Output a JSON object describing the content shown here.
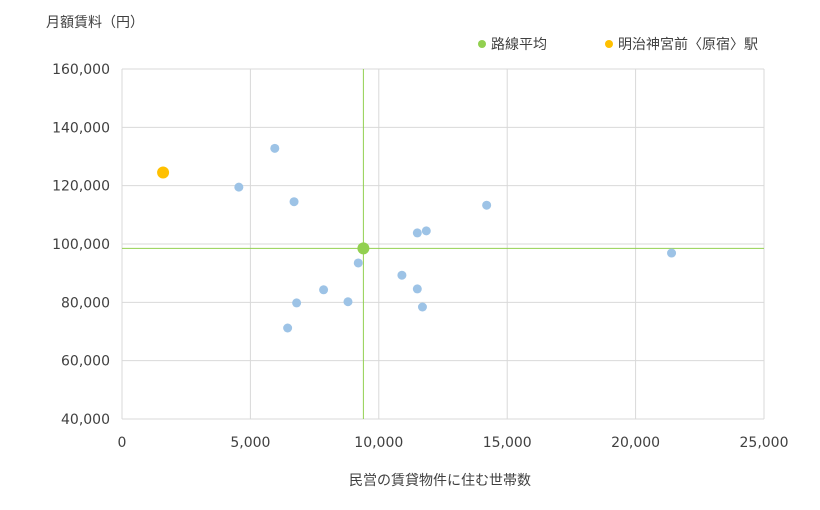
{
  "chart_data": {
    "type": "scatter",
    "title": "",
    "ylabel": "月額賃料（円）",
    "xlabel": "民営の賃貸物件に住む世帯数",
    "xlim": [
      0,
      25000
    ],
    "ylim": [
      40000,
      160000
    ],
    "xticks": [
      "0",
      "5,000",
      "10,000",
      "15,000",
      "20,000",
      "25,000"
    ],
    "yticks": [
      "40,000",
      "60,000",
      "80,000",
      "100,000",
      "120,000",
      "140,000",
      "160,000"
    ],
    "grid": true,
    "legend_position": "top-right",
    "series": [
      {
        "name": "",
        "color": "#9DC3E6",
        "points": [
          {
            "x": 4550,
            "y": 119500
          },
          {
            "x": 5950,
            "y": 132800
          },
          {
            "x": 6700,
            "y": 114500
          },
          {
            "x": 6450,
            "y": 71200
          },
          {
            "x": 6800,
            "y": 79800
          },
          {
            "x": 7850,
            "y": 84300
          },
          {
            "x": 8800,
            "y": 80200
          },
          {
            "x": 9200,
            "y": 93500
          },
          {
            "x": 10900,
            "y": 89300
          },
          {
            "x": 11500,
            "y": 84600
          },
          {
            "x": 11700,
            "y": 78400
          },
          {
            "x": 11500,
            "y": 103800
          },
          {
            "x": 11850,
            "y": 104500
          },
          {
            "x": 14200,
            "y": 113300
          },
          {
            "x": 21400,
            "y": 96900
          }
        ]
      },
      {
        "name": "路線平均",
        "color": "#92D050",
        "points": [
          {
            "x": 9400,
            "y": 98500
          }
        ]
      },
      {
        "name": "明治神宮前〈原宿〉駅",
        "color": "#FFC000",
        "points": [
          {
            "x": 1600,
            "y": 124500
          }
        ]
      }
    ],
    "reference_lines": {
      "color": "#92D050",
      "x": 9400,
      "y": 98500
    }
  }
}
